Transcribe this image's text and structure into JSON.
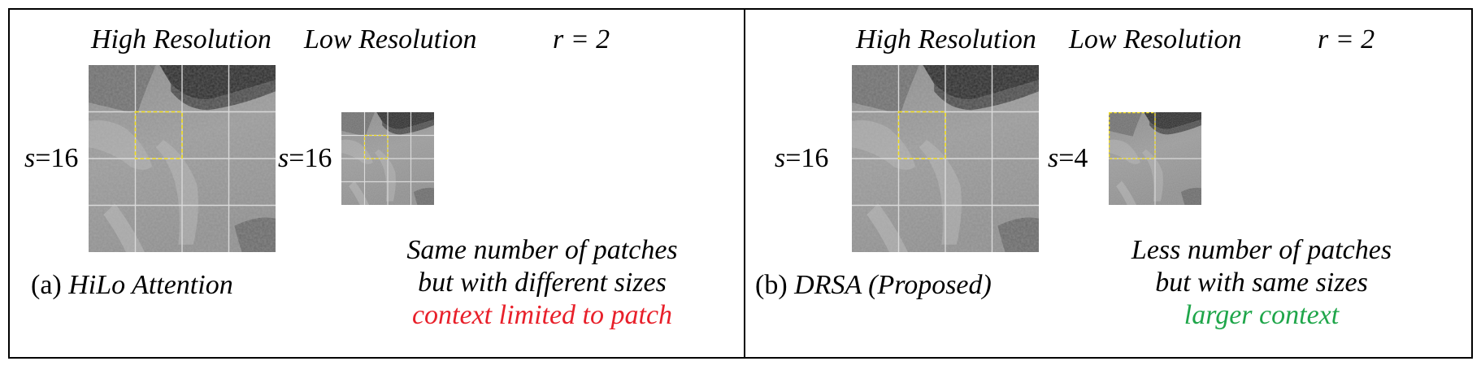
{
  "panel_a": {
    "header_high": "High Resolution",
    "header_low": "Low Resolution",
    "header_r": "r = 2",
    "high_s_var": "s",
    "high_s_val": "=16",
    "low_s_var": "s",
    "low_s_val": "=16",
    "caption_prefix": "(a) ",
    "caption_name": "HiLo Attention",
    "note_line1": "Same number of patches",
    "note_line2": "but with different sizes",
    "note_line3": "context limited to patch",
    "note_line3_color": "#e8202a"
  },
  "panel_b": {
    "header_high": "High Resolution",
    "header_low": "Low Resolution",
    "header_r": "r = 2",
    "high_s_var": "s",
    "high_s_val": "=16",
    "low_s_var": "s",
    "low_s_val": "=4",
    "caption_prefix": "(b) ",
    "caption_name": "DRSA (Proposed)",
    "note_line1": "Less number of patches",
    "note_line2": "but with same sizes",
    "note_line3": "larger context",
    "note_line3_color": "#1fa64a"
  },
  "colors": {
    "grid_line": "#d9d9d9",
    "highlight_box": "#f5e020"
  }
}
